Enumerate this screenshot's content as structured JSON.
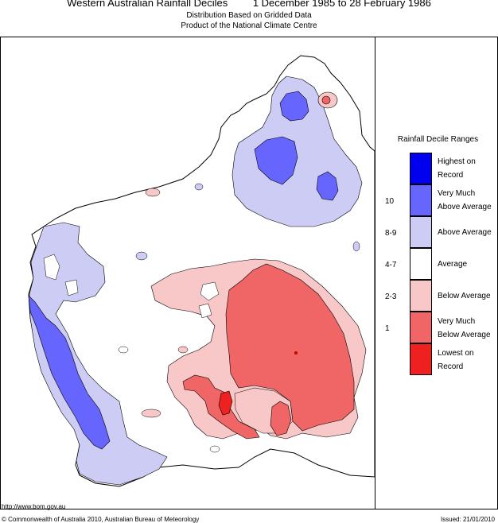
{
  "header": {
    "title": "Western Australian Rainfall Deciles",
    "period": "1 December 1985 to 28 February 1986",
    "subtitle1": "Distribution Based on Gridded Data",
    "subtitle2": "Product of the National Climate Centre"
  },
  "legend": {
    "title": "Rainfall Decile Ranges",
    "items": [
      {
        "label": "Highest on Record",
        "decile": "",
        "color": "#0000ee"
      },
      {
        "label": "Very Much Above Average",
        "decile": "10",
        "color": "#6666ff"
      },
      {
        "label": "Above Average",
        "decile": "8-9",
        "color": "#ccccf5"
      },
      {
        "label": "Average",
        "decile": "4-7",
        "color": "#ffffff"
      },
      {
        "label": "Below Average",
        "decile": "2-3",
        "color": "#f8c8c8"
      },
      {
        "label": "Very Much Below Average",
        "decile": "1",
        "color": "#f06565"
      },
      {
        "label": "Lowest on Record",
        "decile": "",
        "color": "#ee2020"
      }
    ]
  },
  "footer": {
    "url": "http://www.bom.gov.au",
    "copyright": "© Commonwealth of Australia 2010, Australian Bureau of Meteorology",
    "issued": "Issued: 21/01/2010"
  }
}
